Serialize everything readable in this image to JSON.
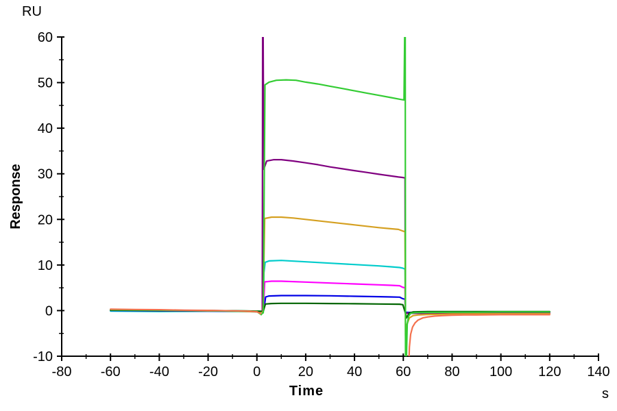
{
  "chart_data": {
    "type": "line",
    "title": "",
    "description": "SPR sensorgram: baseline from -60 to 0 s, association phase 0-60 s with injection spikes, dissociation phase 60-120 s",
    "y_unit": "RU",
    "ylabel": "Response",
    "xlabel": "Time",
    "x_unit": "s",
    "xlim": [
      -80,
      140
    ],
    "ylim": [
      -10,
      60
    ],
    "x_ticks_major": [
      -80,
      -60,
      -40,
      -20,
      0,
      20,
      40,
      60,
      80,
      100,
      120,
      140
    ],
    "x_ticks_minor": [
      -70,
      -50,
      -30,
      -10,
      10,
      30,
      50,
      70,
      90,
      110,
      130
    ],
    "y_ticks_major": [
      -10,
      0,
      10,
      20,
      30,
      40,
      50,
      60
    ],
    "y_ticks_minor": [
      -5,
      5,
      15,
      25,
      35,
      45,
      55
    ],
    "grid": false,
    "legend": "none",
    "series": [
      {
        "name": "cyan",
        "color": "#00cccc",
        "segments": [
          [
            [
              -60,
              -0.1
            ],
            [
              -40,
              -0.2
            ],
            [
              -20,
              -0.15
            ],
            [
              -5,
              -0.2
            ],
            [
              2,
              -0.3
            ]
          ],
          [
            [
              2.6,
              -0.3
            ],
            [
              2.9,
              8.3
            ],
            [
              3.4,
              10.6
            ],
            [
              5,
              10.9
            ],
            [
              10,
              11.0
            ],
            [
              15,
              10.85
            ],
            [
              20,
              10.7
            ],
            [
              30,
              10.4
            ],
            [
              40,
              10.1
            ],
            [
              50,
              9.8
            ],
            [
              55,
              9.6
            ],
            [
              58.5,
              9.45
            ],
            [
              59.8,
              9.3
            ],
            [
              60.7,
              9.1
            ],
            [
              60.85,
              -0.45
            ],
            [
              62,
              -0.5
            ],
            [
              70,
              -0.45
            ],
            [
              80,
              -0.4
            ],
            [
              100,
              -0.4
            ],
            [
              120,
              -0.35
            ]
          ]
        ]
      },
      {
        "name": "blue",
        "color": "#0000e6",
        "segments": [
          [
            [
              -60,
              0.05
            ],
            [
              -40,
              -0.05
            ],
            [
              -20,
              -0.1
            ],
            [
              -5,
              -0.15
            ],
            [
              1.8,
              -0.25
            ]
          ],
          [
            [
              2.5,
              -0.3
            ],
            [
              2.7,
              1.5
            ],
            [
              3.0,
              0.8
            ],
            [
              3.6,
              3.0
            ],
            [
              5,
              3.2
            ],
            [
              10,
              3.3
            ],
            [
              20,
              3.3
            ],
            [
              30,
              3.25
            ],
            [
              40,
              3.15
            ],
            [
              50,
              3.05
            ],
            [
              55,
              3.0
            ],
            [
              58.5,
              2.95
            ],
            [
              59.8,
              2.6
            ],
            [
              60.7,
              2.5
            ],
            [
              60.85,
              -0.35
            ],
            [
              62,
              -0.4
            ],
            [
              70,
              -0.35
            ],
            [
              80,
              -0.35
            ],
            [
              100,
              -0.3
            ],
            [
              120,
              -0.3
            ]
          ]
        ]
      },
      {
        "name": "magenta",
        "color": "#ff00ff",
        "segments": [
          [
            [
              -60,
              0.25
            ],
            [
              -45,
              0.1
            ],
            [
              -25,
              0.05
            ],
            [
              -10,
              -0.05
            ],
            [
              1.8,
              -0.2
            ]
          ],
          [
            [
              2.6,
              -0.2
            ],
            [
              3.2,
              6.3
            ],
            [
              6,
              6.45
            ],
            [
              10,
              6.45
            ],
            [
              20,
              6.25
            ],
            [
              30,
              6.05
            ],
            [
              40,
              5.85
            ],
            [
              50,
              5.65
            ],
            [
              55,
              5.55
            ],
            [
              58.5,
              5.45
            ],
            [
              59.8,
              5.1
            ],
            [
              60.7,
              5.0
            ],
            [
              60.85,
              -0.6
            ],
            [
              62,
              -0.6
            ],
            [
              70,
              -0.55
            ],
            [
              80,
              -0.5
            ],
            [
              100,
              -0.5
            ],
            [
              120,
              -0.45
            ]
          ]
        ]
      },
      {
        "name": "purple",
        "color": "#800080",
        "segments": [
          [
            [
              -60,
              0.1
            ],
            [
              -40,
              0.0
            ],
            [
              -20,
              -0.05
            ],
            [
              -5,
              -0.1
            ],
            [
              1.9,
              -0.3
            ]
          ],
          [
            [
              2.2,
              -0.4
            ],
            [
              2.35,
              62
            ],
            [
              2.55,
              62
            ],
            [
              2.8,
              31
            ],
            [
              4,
              32.8
            ],
            [
              7,
              33.1
            ],
            [
              10,
              33.1
            ],
            [
              15,
              32.8
            ],
            [
              20,
              32.4
            ],
            [
              25,
              32.0
            ],
            [
              30,
              31.5
            ],
            [
              35,
              31.1
            ],
            [
              40,
              30.7
            ],
            [
              45,
              30.3
            ],
            [
              50,
              29.9
            ],
            [
              54,
              29.6
            ],
            [
              58,
              29.3
            ],
            [
              59.5,
              29.2
            ],
            [
              60.7,
              29.1
            ],
            [
              60.85,
              -0.5
            ],
            [
              62,
              -0.6
            ],
            [
              70,
              -0.55
            ],
            [
              80,
              -0.55
            ],
            [
              100,
              -0.55
            ],
            [
              120,
              -0.6
            ]
          ]
        ]
      },
      {
        "name": "gold",
        "color": "#d5a021",
        "segments": [
          [
            [
              -60,
              0.15
            ],
            [
              -30,
              0.0
            ],
            [
              -10,
              -0.1
            ],
            [
              2,
              -0.3
            ]
          ],
          [
            [
              2.5,
              -0.3
            ],
            [
              3.2,
              20.2
            ],
            [
              6,
              20.5
            ],
            [
              10,
              20.5
            ],
            [
              15,
              20.3
            ],
            [
              20,
              20.0
            ],
            [
              25,
              19.7
            ],
            [
              30,
              19.4
            ],
            [
              35,
              19.1
            ],
            [
              40,
              18.8
            ],
            [
              45,
              18.5
            ],
            [
              50,
              18.2
            ],
            [
              54,
              18.0
            ],
            [
              58,
              17.8
            ],
            [
              59.5,
              17.5
            ],
            [
              60.7,
              17.3
            ],
            [
              60.9,
              -5.5
            ],
            [
              61.5,
              -3.0
            ],
            [
              62.5,
              -1.6
            ],
            [
              64,
              -1.1
            ],
            [
              66,
              -0.95
            ],
            [
              70,
              -0.85
            ],
            [
              75,
              -0.8
            ],
            [
              80,
              -0.75
            ],
            [
              90,
              -0.72
            ],
            [
              100,
              -0.7
            ],
            [
              110,
              -0.7
            ],
            [
              120,
              -0.7
            ]
          ]
        ]
      },
      {
        "name": "dark-green",
        "color": "#006400",
        "segments": [
          [
            [
              -60,
              0.1
            ],
            [
              -40,
              0.05
            ],
            [
              -20,
              0.0
            ],
            [
              -5,
              -0.05
            ],
            [
              1.8,
              -0.15
            ]
          ],
          [
            [
              2.6,
              -0.15
            ],
            [
              3.5,
              1.45
            ],
            [
              6,
              1.55
            ],
            [
              10,
              1.6
            ],
            [
              20,
              1.6
            ],
            [
              30,
              1.55
            ],
            [
              40,
              1.5
            ],
            [
              50,
              1.45
            ],
            [
              58.5,
              1.4
            ],
            [
              59.8,
              1.3
            ],
            [
              60.9,
              -0.6
            ],
            [
              61.3,
              -1.6
            ],
            [
              61.8,
              -1.1
            ],
            [
              62.5,
              -0.5
            ],
            [
              64,
              -0.3
            ],
            [
              66,
              -0.25
            ],
            [
              70,
              -0.2
            ],
            [
              80,
              -0.2
            ],
            [
              100,
              -0.2
            ],
            [
              120,
              -0.2
            ]
          ]
        ]
      },
      {
        "name": "green",
        "color": "#33cc33",
        "segments": [
          [
            [
              -60,
              0.2
            ],
            [
              -40,
              0.1
            ],
            [
              -20,
              0.0
            ],
            [
              -10,
              -0.1
            ],
            [
              -3,
              -0.15
            ],
            [
              0,
              -0.2
            ],
            [
              1.8,
              -0.9
            ],
            [
              2.2,
              -0.6
            ]
          ],
          [
            [
              2.6,
              -0.5
            ],
            [
              3.3,
              49.5
            ],
            [
              5,
              50.1
            ],
            [
              8,
              50.5
            ],
            [
              12,
              50.6
            ],
            [
              16,
              50.5
            ],
            [
              20,
              50.1
            ],
            [
              25,
              49.7
            ],
            [
              30,
              49.2
            ],
            [
              35,
              48.7
            ],
            [
              40,
              48.2
            ],
            [
              45,
              47.7
            ],
            [
              50,
              47.2
            ],
            [
              55,
              46.7
            ],
            [
              59,
              46.3
            ],
            [
              60.3,
              46.2
            ],
            [
              60.6,
              62
            ],
            [
              60.8,
              62
            ],
            [
              60.9,
              -13
            ],
            [
              61.2,
              -13
            ],
            [
              61.6,
              -3.0
            ],
            [
              62.2,
              -1.2
            ],
            [
              63,
              -0.6
            ],
            [
              65,
              -0.45
            ],
            [
              70,
              -0.4
            ],
            [
              80,
              -0.35
            ],
            [
              90,
              -0.35
            ],
            [
              100,
              -0.3
            ],
            [
              110,
              -0.3
            ],
            [
              120,
              -0.3
            ]
          ]
        ]
      },
      {
        "name": "salmon",
        "color": "#f4714e",
        "segments": [
          [
            [
              -60,
              0.3
            ],
            [
              -50,
              0.25
            ],
            [
              -40,
              0.2
            ],
            [
              -30,
              0.1
            ],
            [
              -20,
              0.05
            ],
            [
              -10,
              -0.05
            ],
            [
              -3,
              -0.15
            ],
            [
              0,
              -0.25
            ],
            [
              1,
              -0.5
            ],
            [
              1.6,
              -0.7
            ]
          ],
          [
            [
              62.2,
              -13
            ],
            [
              62.5,
              -8.0
            ],
            [
              63,
              -5.2
            ],
            [
              63.8,
              -3.6
            ],
            [
              64.8,
              -2.7
            ],
            [
              66,
              -2.1
            ],
            [
              68,
              -1.6
            ],
            [
              70,
              -1.4
            ],
            [
              73,
              -1.2
            ],
            [
              76,
              -1.1
            ],
            [
              80,
              -1.0
            ],
            [
              85,
              -0.95
            ],
            [
              90,
              -0.95
            ],
            [
              100,
              -0.9
            ],
            [
              110,
              -0.9
            ],
            [
              120,
              -0.9
            ]
          ]
        ]
      }
    ]
  }
}
